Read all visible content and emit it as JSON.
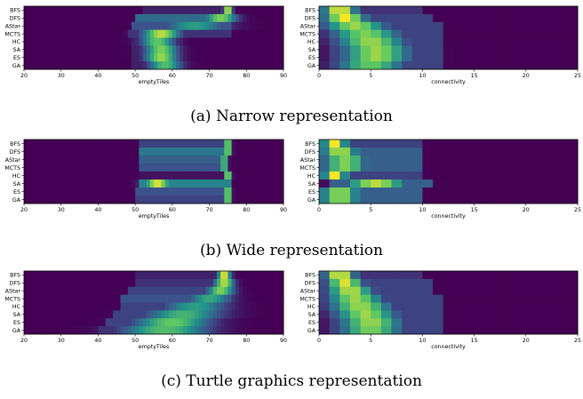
{
  "colormap": [
    "#440154",
    "#3b528b",
    "#21918c",
    "#5ec962",
    "#fde725"
  ],
  "row_labels": [
    "BFS",
    "DFS",
    "AStar",
    "MCTS",
    "HC",
    "SA",
    "ES",
    "GA"
  ],
  "left_axis": {
    "xlabel": "emptyTiles",
    "xlim": [
      20,
      90
    ],
    "ticks": [
      {
        "v": 20,
        "t": "20"
      },
      {
        "v": 30,
        "t": "30"
      },
      {
        "v": 40,
        "t": "40"
      },
      {
        "v": 50,
        "t": "50"
      },
      {
        "v": 60,
        "t": "60"
      },
      {
        "v": 70,
        "t": "70"
      },
      {
        "v": 80,
        "t": "80"
      },
      {
        "v": 90,
        "t": "90"
      }
    ]
  },
  "right_axis": {
    "xlabel": "connectivity",
    "xlim": [
      0,
      25
    ],
    "ticks": [
      {
        "v": 0,
        "t": "0"
      },
      {
        "v": 5,
        "t": "5"
      },
      {
        "v": 10,
        "t": "10"
      },
      {
        "v": 15,
        "t": "15"
      },
      {
        "v": 20,
        "t": "20"
      },
      {
        "v": 25,
        "t": "25"
      }
    ]
  },
  "chart_data": [
    {
      "type": "heatmap",
      "caption": "(a) Narrow representation",
      "rows": [
        "BFS",
        "DFS",
        "AStar",
        "MCTS",
        "HC",
        "SA",
        "ES",
        "GA"
      ],
      "panels": [
        {
          "xlabel": "emptyTiles",
          "xlim": [
            20,
            90
          ],
          "rows": [
            {
              "center": 75,
              "spread": 0.8,
              "peak": 1.0,
              "tail": [
                52,
                76,
                0.1
              ]
            },
            {
              "center": 73,
              "spread": 3.0,
              "peak": 0.8,
              "tail": [
                50,
                76,
                0.35
              ]
            },
            {
              "center": 66,
              "spread": 6.0,
              "peak": 0.55,
              "tail": [
                49,
                76,
                0.25
              ]
            },
            {
              "center": 57,
              "spread": 3.5,
              "peak": 0.9,
              "tail": [
                48,
                76,
                0.15
              ]
            },
            {
              "center": 56,
              "spread": 3.0,
              "peak": 0.75,
              "tail": [
                49,
                63,
                0.1
              ]
            },
            {
              "center": 57,
              "spread": 3.0,
              "peak": 0.8,
              "tail": [
                49,
                63,
                0.1
              ]
            },
            {
              "center": 57,
              "spread": 3.0,
              "peak": 0.85,
              "tail": [
                49,
                63,
                0.1
              ]
            },
            {
              "center": 58,
              "spread": 3.0,
              "peak": 0.7,
              "tail": [
                49,
                64,
                0.1
              ]
            }
          ]
        },
        {
          "xlabel": "connectivity",
          "xlim": [
            0,
            25
          ],
          "rows": [
            {
              "center": 2,
              "spread": 1.1,
              "peak": 1.0,
              "tail": [
                1,
                10,
                0.15
              ]
            },
            {
              "center": 2.5,
              "spread": 1.4,
              "peak": 1.0,
              "tail": [
                1,
                11,
                0.2
              ]
            },
            {
              "center": 3.5,
              "spread": 2.0,
              "peak": 0.85,
              "tail": [
                1,
                12,
                0.2
              ]
            },
            {
              "center": 4.5,
              "spread": 2.2,
              "peak": 0.8,
              "tail": [
                1,
                12,
                0.2
              ]
            },
            {
              "center": 5.0,
              "spread": 2.2,
              "peak": 0.85,
              "tail": [
                1,
                12,
                0.2
              ]
            },
            {
              "center": 5.5,
              "spread": 2.2,
              "peak": 0.85,
              "tail": [
                1,
                12,
                0.2
              ]
            },
            {
              "center": 5.5,
              "spread": 2.2,
              "peak": 0.85,
              "tail": [
                1,
                12,
                0.2
              ]
            },
            {
              "center": 5.0,
              "spread": 2.2,
              "peak": 0.75,
              "tail": [
                1,
                12,
                0.2
              ]
            }
          ]
        }
      ]
    },
    {
      "type": "heatmap",
      "caption": "(b) Wide representation",
      "rows": [
        "BFS",
        "DFS",
        "AStar",
        "MCTS",
        "HC",
        "SA",
        "ES",
        "GA"
      ],
      "panels": [
        {
          "xlabel": "emptyTiles",
          "xlim": [
            20,
            90
          ],
          "rows": [
            {
              "center": 75,
              "spread": 0.6,
              "peak": 1.0,
              "tail": [
                51,
                76,
                0.2
              ]
            },
            {
              "center": 75,
              "spread": 0.6,
              "peak": 1.0,
              "tail": [
                51,
                76,
                0.4
              ]
            },
            {
              "center": 74,
              "spread": 0.6,
              "peak": 0.85,
              "tail": [
                51,
                75,
                0.3
              ]
            },
            {
              "center": 74,
              "spread": 0.6,
              "peak": 0.85,
              "tail": [
                51,
                75,
                0.25
              ]
            },
            {
              "center": 75,
              "spread": 0.6,
              "peak": 1.0,
              "tail": [
                51,
                76,
                0.05
              ]
            },
            {
              "center": 56,
              "spread": 2.5,
              "peak": 0.95,
              "tail": [
                51,
                76,
                0.45
              ]
            },
            {
              "center": 75,
              "spread": 0.6,
              "peak": 1.0,
              "tail": [
                50,
                76,
                0.25
              ]
            },
            {
              "center": 75,
              "spread": 0.6,
              "peak": 1.0,
              "tail": [
                50,
                76,
                0.2
              ]
            }
          ]
        },
        {
          "xlabel": "connectivity",
          "xlim": [
            0,
            25
          ],
          "rows": [
            {
              "center": 1.5,
              "spread": 0.8,
              "peak": 1.0,
              "tail": [
                1,
                10,
                0.2
              ]
            },
            {
              "center": 2.0,
              "spread": 1.2,
              "peak": 0.9,
              "tail": [
                1,
                10,
                0.3
              ]
            },
            {
              "center": 2.5,
              "spread": 1.5,
              "peak": 0.8,
              "tail": [
                1,
                10,
                0.3
              ]
            },
            {
              "center": 2.5,
              "spread": 1.5,
              "peak": 0.8,
              "tail": [
                1,
                10,
                0.3
              ]
            },
            {
              "center": 1.5,
              "spread": 0.8,
              "peak": 1.0,
              "tail": [
                1,
                10,
                0.2
              ]
            },
            {
              "center": 5.5,
              "spread": 2.0,
              "peak": 0.9,
              "tail": [
                1,
                11,
                0.3
              ]
            },
            {
              "center": 2.0,
              "spread": 1.3,
              "peak": 0.85,
              "tail": [
                1,
                10,
                0.3
              ]
            },
            {
              "center": 2.0,
              "spread": 1.3,
              "peak": 0.85,
              "tail": [
                1,
                10,
                0.3
              ]
            }
          ]
        }
      ]
    },
    {
      "type": "heatmap",
      "caption": "(c) Turtle graphics representation",
      "rows": [
        "BFS",
        "DFS",
        "AStar",
        "MCTS",
        "HC",
        "SA",
        "ES",
        "GA"
      ],
      "panels": [
        {
          "xlabel": "emptyTiles",
          "xlim": [
            20,
            90
          ],
          "rows": [
            {
              "center": 74,
              "spread": 1.2,
              "peak": 1.0,
              "tail": [
                50,
                76,
                0.1
              ]
            },
            {
              "center": 74,
              "spread": 1.8,
              "peak": 0.9,
              "tail": [
                50,
                76,
                0.15
              ]
            },
            {
              "center": 73,
              "spread": 2.5,
              "peak": 0.8,
              "tail": [
                48,
                76,
                0.2
              ]
            },
            {
              "center": 70,
              "spread": 4.0,
              "peak": 0.6,
              "tail": [
                46,
                76,
                0.25
              ]
            },
            {
              "center": 66,
              "spread": 6.0,
              "peak": 0.55,
              "tail": [
                46,
                72,
                0.2
              ]
            },
            {
              "center": 63,
              "spread": 7.0,
              "peak": 0.65,
              "tail": [
                44,
                72,
                0.2
              ]
            },
            {
              "center": 60,
              "spread": 7.0,
              "peak": 0.75,
              "tail": [
                42,
                72,
                0.2
              ]
            },
            {
              "center": 58,
              "spread": 8.0,
              "peak": 0.7,
              "tail": [
                40,
                72,
                0.15
              ]
            }
          ]
        },
        {
          "xlabel": "connectivity",
          "xlim": [
            0,
            25
          ],
          "rows": [
            {
              "center": 2,
              "spread": 1.0,
              "peak": 1.0,
              "tail": [
                1,
                10,
                0.15
              ]
            },
            {
              "center": 2.5,
              "spread": 1.2,
              "peak": 0.95,
              "tail": [
                1,
                11,
                0.2
              ]
            },
            {
              "center": 3.0,
              "spread": 1.5,
              "peak": 0.9,
              "tail": [
                1,
                11,
                0.2
              ]
            },
            {
              "center": 3.5,
              "spread": 1.8,
              "peak": 0.85,
              "tail": [
                1,
                12,
                0.2
              ]
            },
            {
              "center": 4.0,
              "spread": 2.0,
              "peak": 0.85,
              "tail": [
                1,
                12,
                0.2
              ]
            },
            {
              "center": 4.5,
              "spread": 2.0,
              "peak": 0.85,
              "tail": [
                1,
                12,
                0.2
              ]
            },
            {
              "center": 5.0,
              "spread": 2.0,
              "peak": 0.85,
              "tail": [
                1,
                12,
                0.2
              ]
            },
            {
              "center": 5.0,
              "spread": 2.0,
              "peak": 0.8,
              "tail": [
                1,
                12,
                0.2
              ]
            }
          ]
        }
      ]
    }
  ]
}
